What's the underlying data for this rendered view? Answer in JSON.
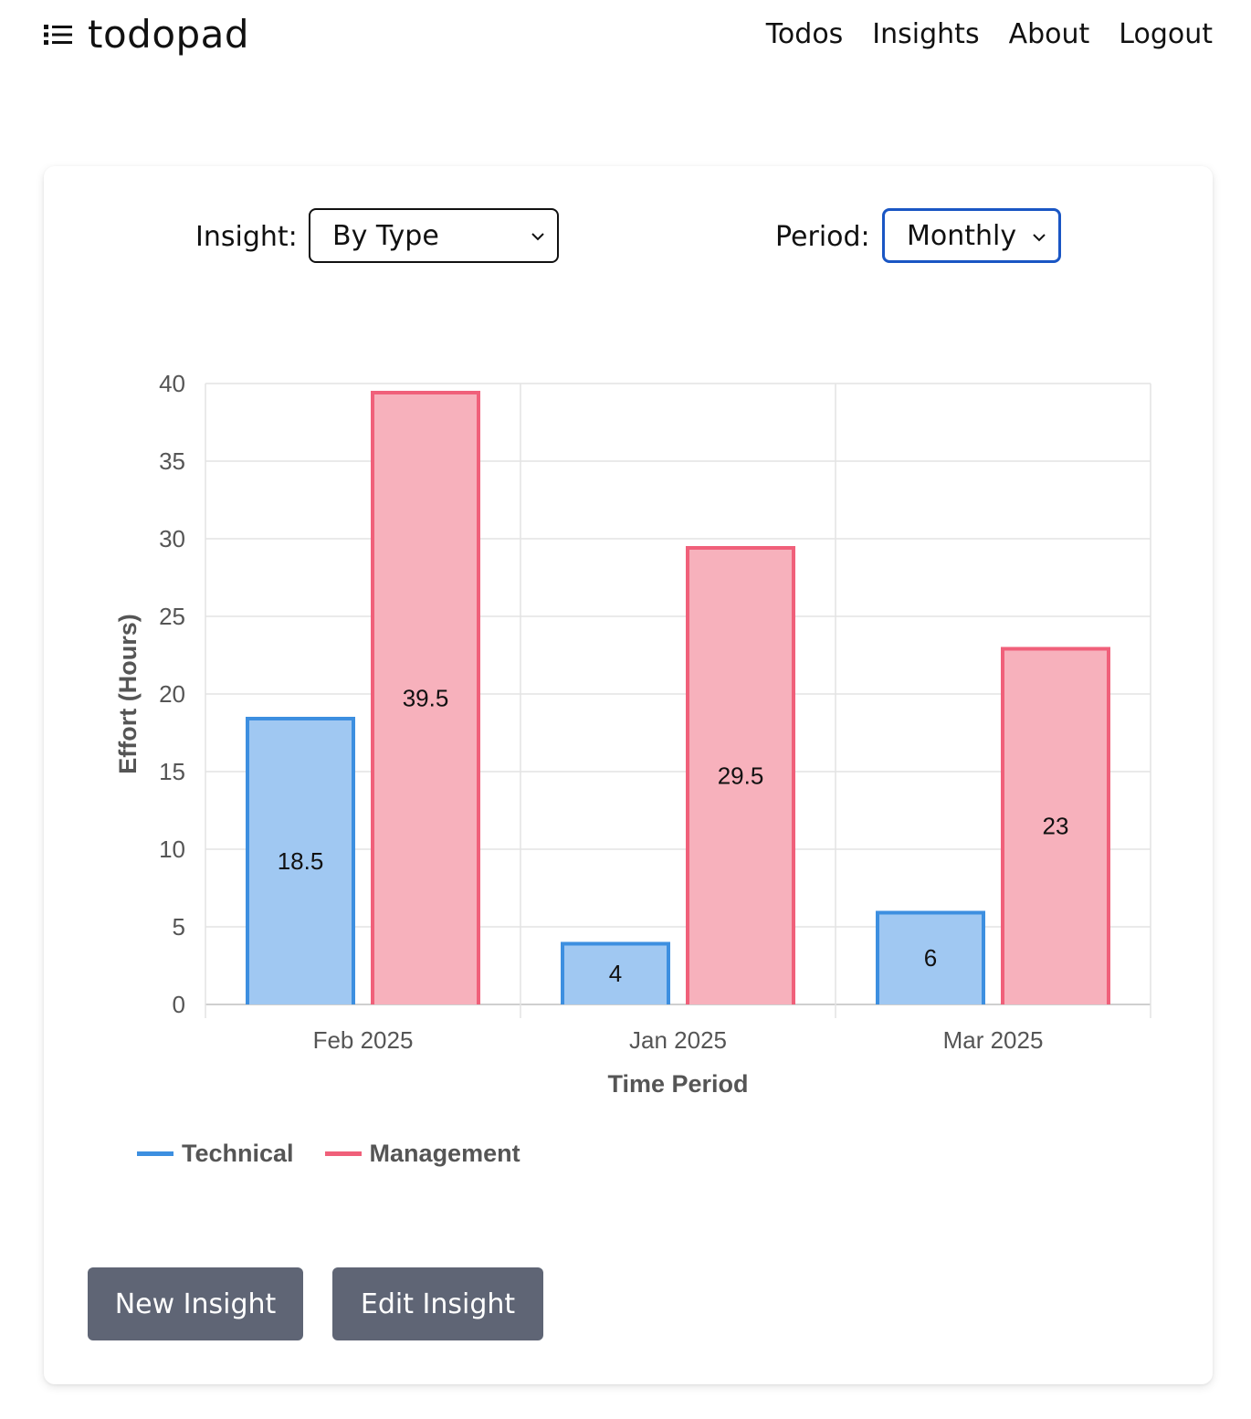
{
  "app": {
    "name": "todopad"
  },
  "nav": {
    "todos": "Todos",
    "insights": "Insights",
    "about": "About",
    "logout": "Logout"
  },
  "controls": {
    "insight_label": "Insight:",
    "insight_value": "By Type",
    "period_label": "Period:",
    "period_value": "Monthly"
  },
  "buttons": {
    "new_insight": "New Insight",
    "edit_insight": "Edit Insight"
  },
  "colors": {
    "technical": "#3d8fe0",
    "management": "#f0607a",
    "button": "#5f6575",
    "focus": "#1a56c4"
  },
  "chart_data": {
    "type": "bar",
    "categories": [
      "Feb 2025",
      "Jan 2025",
      "Mar 2025"
    ],
    "series": [
      {
        "name": "Technical",
        "values": [
          18.5,
          4,
          6
        ],
        "border": "#3d8fe0",
        "fill": "#a0c8f2"
      },
      {
        "name": "Management",
        "values": [
          39.5,
          29.5,
          23
        ],
        "border": "#f0607a",
        "fill": "#f7b1bc"
      }
    ],
    "xlabel": "Time Period",
    "ylabel": "Effort (Hours)",
    "ylim": [
      0,
      40
    ],
    "yticks": [
      0,
      5,
      10,
      15,
      20,
      25,
      30,
      35,
      40
    ],
    "grid": true,
    "legend": "bottom-left",
    "data_labels": true
  }
}
